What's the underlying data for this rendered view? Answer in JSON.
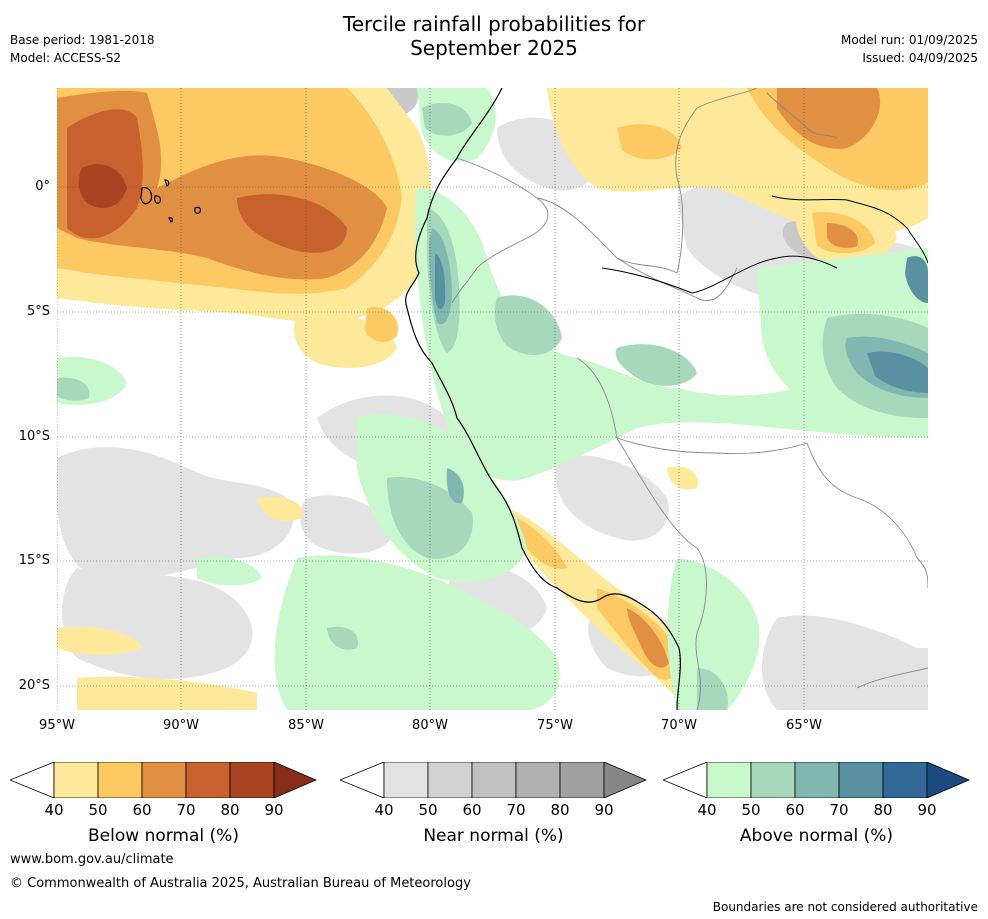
{
  "header": {
    "title_line1": "Tercile rainfall probabilities for",
    "title_line2": "September 2025",
    "base_period": "Base period: 1981-2018",
    "model": "Model: ACCESS-S2",
    "model_run": "Model run: 01/09/2025",
    "issued": "Issued: 04/09/2025"
  },
  "map": {
    "lat_labels": [
      "0°",
      "5°S",
      "10°S",
      "15°S",
      "20°S"
    ],
    "lon_labels": [
      "95°W",
      "90°W",
      "85°W",
      "80°W",
      "75°W",
      "70°W",
      "65°W"
    ]
  },
  "legends": [
    {
      "label": "Below normal (%)",
      "ticks": [
        "40",
        "50",
        "60",
        "70",
        "80",
        "90"
      ],
      "colors": [
        "#fee99b",
        "#fdc963",
        "#e08f43",
        "#c9612e",
        "#a94423",
        "#8a2c1a"
      ]
    },
    {
      "label": "Near normal (%)",
      "ticks": [
        "40",
        "50",
        "60",
        "70",
        "80",
        "90"
      ],
      "colors": [
        "#e3e3e3",
        "#d2d2d2",
        "#c1c1c1",
        "#b1b1b1",
        "#a0a0a0",
        "#878787"
      ]
    },
    {
      "label": "Above normal (%)",
      "ticks": [
        "40",
        "50",
        "60",
        "70",
        "80",
        "90"
      ],
      "colors": [
        "#c8f8cc",
        "#a6d8bc",
        "#80b7b1",
        "#5a91a0",
        "#316896",
        "#1a4a80"
      ]
    }
  ],
  "footer": {
    "url": "www.bom.gov.au/climate",
    "copyright": "© Commonwealth of Australia 2025, Australian Bureau of Meteorology",
    "disclaimer": "Boundaries are not considered authoritative"
  }
}
